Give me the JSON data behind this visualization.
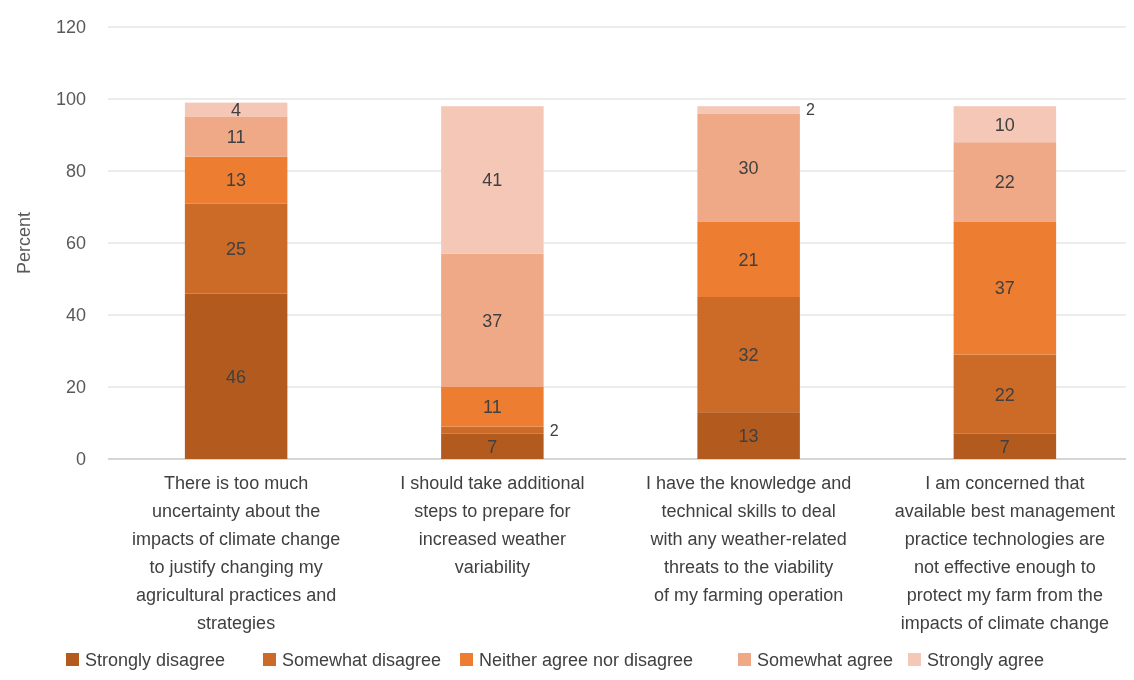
{
  "chart_data": {
    "type": "bar",
    "stacked": true,
    "ylabel": "Percent",
    "categories": [
      "There is too much uncertainty about the impacts of climate change to justify changing my agricultural practices and strategies",
      "I should take additional steps to prepare for increased weather variability",
      "I have the knowledge and technical skills to deal with any weather-related threats to the viability of my farming operation",
      "I am concerned that available best management practice technologies are not effective enough to protect my farm from the impacts of climate change"
    ],
    "series": [
      {
        "name": "Strongly disagree",
        "color": "#b35a1f",
        "values": [
          46,
          7,
          13,
          7
        ]
      },
      {
        "name": "Somewhat disagree",
        "color": "#cc6a28",
        "values": [
          25,
          2,
          32,
          22
        ]
      },
      {
        "name": "Neither agree nor disagree",
        "color": "#ed7d31",
        "values": [
          13,
          11,
          21,
          37
        ]
      },
      {
        "name": "Somewhat agree",
        "color": "#f0a987",
        "values": [
          11,
          37,
          30,
          22
        ]
      },
      {
        "name": "Strongly agree",
        "color": "#f5c7b6",
        "values": [
          4,
          41,
          2,
          10
        ]
      }
    ],
    "ylim": [
      0,
      120
    ],
    "yticks": [
      0,
      20,
      40,
      60,
      80,
      100,
      120
    ],
    "grid": "y",
    "data_labels": true,
    "legend": "bottom"
  }
}
